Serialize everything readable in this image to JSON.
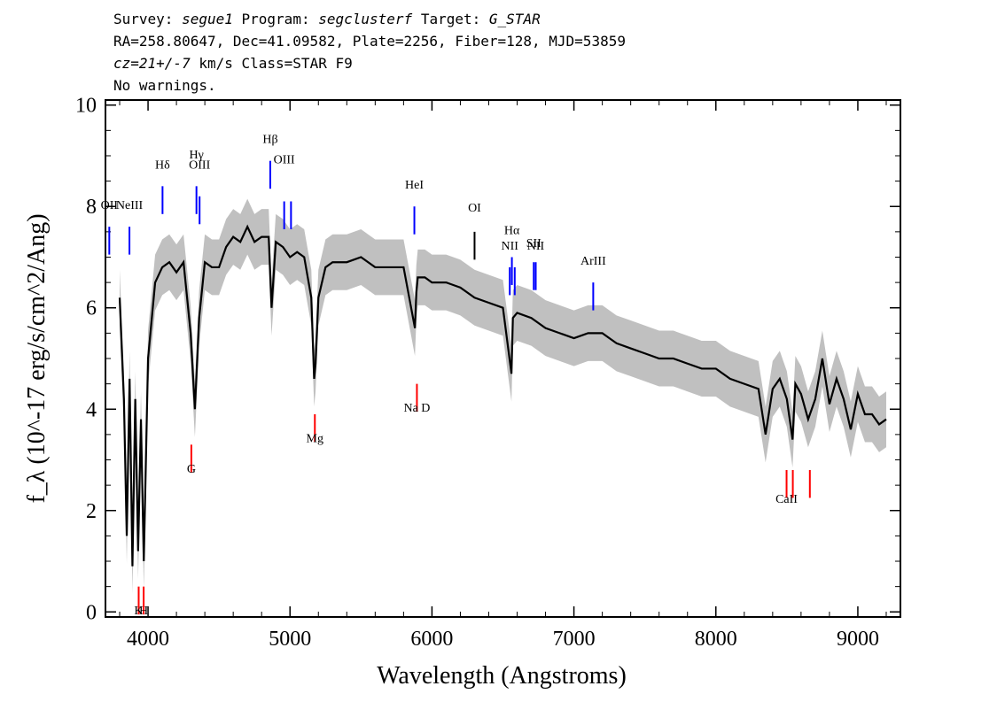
{
  "header": {
    "survey_label": "Survey:",
    "survey": "segue1",
    "program_label": "Program:",
    "program": "segclusterf",
    "target_label": "Target:",
    "target": "G_STAR",
    "line2": "RA=258.80647, Dec=41.09582, Plate=2256, Fiber=128, MJD=53859",
    "cz": "cz=21+/-7",
    "line3_rest": " km/s Class=STAR F9",
    "line4": "No warnings."
  },
  "chart_data": {
    "type": "line",
    "xlabel": "Wavelength (Angstroms)",
    "ylabel": "f_λ (10^-17 erg/s/cm^2/Ang)",
    "xlim": [
      3700,
      9300
    ],
    "ylim": [
      -0.1,
      10.1
    ],
    "x_ticks": [
      4000,
      5000,
      6000,
      7000,
      8000,
      9000
    ],
    "y_ticks": [
      0,
      2,
      4,
      6,
      8,
      10
    ],
    "grid": false,
    "colors": {
      "flux": "#000000",
      "error": "#c0c0c0",
      "emission": "#0000ff",
      "absorption": "#ff0000",
      "other": "#000000"
    },
    "series": [
      {
        "name": "flux",
        "x": [
          3800,
          3830,
          3850,
          3870,
          3890,
          3910,
          3930,
          3950,
          3970,
          4000,
          4050,
          4100,
          4150,
          4200,
          4250,
          4300,
          4330,
          4360,
          4400,
          4450,
          4500,
          4550,
          4600,
          4650,
          4700,
          4750,
          4800,
          4850,
          4870,
          4900,
          4950,
          5000,
          5050,
          5100,
          5150,
          5170,
          5180,
          5200,
          5250,
          5300,
          5400,
          5500,
          5600,
          5700,
          5800,
          5880,
          5890,
          5900,
          5950,
          6000,
          6100,
          6200,
          6300,
          6400,
          6500,
          6560,
          6570,
          6600,
          6700,
          6800,
          6900,
          7000,
          7100,
          7200,
          7300,
          7400,
          7500,
          7600,
          7700,
          7800,
          7900,
          8000,
          8100,
          8200,
          8300,
          8350,
          8400,
          8450,
          8500,
          8540,
          8560,
          8600,
          8650,
          8700,
          8750,
          8800,
          8850,
          8900,
          8950,
          9000,
          9050,
          9100,
          9150,
          9200
        ],
        "values": [
          6.2,
          4.2,
          1.5,
          4.6,
          0.9,
          4.2,
          1.2,
          3.8,
          1.0,
          5.0,
          6.5,
          6.8,
          6.9,
          6.7,
          6.9,
          5.5,
          4.0,
          5.8,
          6.9,
          6.8,
          6.8,
          7.2,
          7.4,
          7.3,
          7.6,
          7.3,
          7.4,
          7.4,
          6.0,
          7.3,
          7.2,
          7.0,
          7.1,
          7.0,
          6.2,
          4.6,
          4.9,
          6.2,
          6.8,
          6.9,
          6.9,
          7.0,
          6.8,
          6.8,
          6.8,
          5.6,
          6.3,
          6.6,
          6.6,
          6.5,
          6.5,
          6.4,
          6.2,
          6.1,
          6.0,
          4.7,
          5.8,
          5.9,
          5.8,
          5.6,
          5.5,
          5.4,
          5.5,
          5.5,
          5.3,
          5.2,
          5.1,
          5.0,
          5.0,
          4.9,
          4.8,
          4.8,
          4.6,
          4.5,
          4.4,
          3.5,
          4.4,
          4.6,
          4.2,
          3.4,
          4.5,
          4.3,
          3.8,
          4.2,
          5.0,
          4.1,
          4.6,
          4.2,
          3.6,
          4.3,
          3.9,
          3.9,
          3.7,
          3.8
        ]
      }
    ],
    "error_band": {
      "name": "error",
      "half_width": 0.55
    },
    "line_markers": [
      {
        "label": "OII",
        "x": 3727,
        "y": 7.6,
        "kind": "emission",
        "label_y": 7.95
      },
      {
        "label": "NeIII",
        "x": 3869,
        "y": 7.6,
        "kind": "emission",
        "label_y": 7.95
      },
      {
        "label": "Hδ",
        "x": 4102,
        "y": 8.4,
        "kind": "emission",
        "label_y": 8.75
      },
      {
        "label": "Hγ",
        "x": 4341,
        "y": 8.4,
        "kind": "emission",
        "label_y": 8.95
      },
      {
        "label": "OIII",
        "x": 4363,
        "y": 8.2,
        "kind": "emission",
        "label_y": 8.75
      },
      {
        "label": "Hβ",
        "x": 4861,
        "y": 8.9,
        "kind": "emission",
        "label_y": 9.25
      },
      {
        "label": "OIII",
        "x": 4959,
        "y": 8.1,
        "kind": "emission",
        "label_y": 8.85
      },
      {
        "label": "",
        "x": 5007,
        "y": 8.1,
        "kind": "emission",
        "label_y": 8.85
      },
      {
        "label": "HeI",
        "x": 5876,
        "y": 8.0,
        "kind": "emission",
        "label_y": 8.35
      },
      {
        "label": "OI",
        "x": 6300,
        "y": 7.5,
        "kind": "other",
        "label_y": 7.9
      },
      {
        "label": "NII",
        "x": 6548,
        "y": 6.8,
        "kind": "emission",
        "label_y": 7.15
      },
      {
        "label": "Hα",
        "x": 6563,
        "y": 7.0,
        "kind": "emission",
        "label_y": 7.45
      },
      {
        "label": "",
        "x": 6583,
        "y": 6.8,
        "kind": "emission",
        "label_y": 7.15
      },
      {
        "label": "SII",
        "x": 6717,
        "y": 6.9,
        "kind": "emission",
        "label_y": 7.2
      },
      {
        "label": "NII",
        "x": 6731,
        "y": 6.9,
        "kind": "emission",
        "label_y": 7.15
      },
      {
        "label": "ArIII",
        "x": 7136,
        "y": 6.5,
        "kind": "emission",
        "label_y": 6.85
      },
      {
        "label": "K",
        "x": 3934,
        "y": 0.5,
        "kind": "absorption",
        "label_y": -0.05
      },
      {
        "label": "H",
        "x": 3969,
        "y": 0.5,
        "kind": "absorption",
        "label_y": -0.05
      },
      {
        "label": "G",
        "x": 4305,
        "y": 3.3,
        "kind": "absorption",
        "label_y": 2.75
      },
      {
        "label": "Mg",
        "x": 5175,
        "y": 3.9,
        "kind": "absorption",
        "label_y": 3.35
      },
      {
        "label": "Na D",
        "x": 5894,
        "y": 4.5,
        "kind": "absorption",
        "label_y": 3.95
      },
      {
        "label": "CaII",
        "x": 8498,
        "y": 2.8,
        "kind": "absorption",
        "label_y": 2.15
      },
      {
        "label": "",
        "x": 8542,
        "y": 2.8,
        "kind": "absorption",
        "label_y": 2.15
      },
      {
        "label": "",
        "x": 8662,
        "y": 2.8,
        "kind": "absorption",
        "label_y": 2.15
      }
    ]
  }
}
